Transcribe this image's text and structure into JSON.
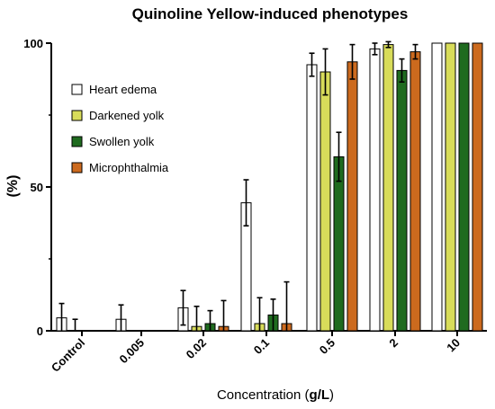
{
  "chart_data": {
    "type": "bar",
    "title": "Quinoline Yellow-induced phenotypes",
    "xlabel_prefix": "Concentration (",
    "xlabel_unit": "g/L",
    "xlabel_suffix": ")",
    "ylabel": "(%)",
    "ylim": [
      0,
      100
    ],
    "yticks": [
      "0",
      "50",
      "100"
    ],
    "categories": [
      "Control",
      "0.005",
      "0.02",
      "0.1",
      "0.5",
      "2",
      "10"
    ],
    "series": [
      {
        "name": "Heart edema",
        "color": "#ffffff",
        "values": [
          4.5,
          4,
          8,
          44.5,
          92.5,
          98,
          100
        ],
        "errors": [
          5,
          5,
          6,
          8,
          4,
          2,
          0
        ]
      },
      {
        "name": "Darkened yolk",
        "color": "#d8dc5a",
        "values": [
          0,
          0,
          1.5,
          2.5,
          90,
          99.5,
          100
        ],
        "errors": [
          0,
          0,
          7,
          9,
          8,
          1,
          0
        ]
      },
      {
        "name": "Swollen yolk",
        "color": "#1f6b1f",
        "values": [
          0,
          0,
          2.5,
          5.5,
          60.5,
          90.5,
          100
        ],
        "errors": [
          0,
          0,
          4.5,
          5.5,
          8.5,
          4,
          0
        ]
      },
      {
        "name": "Microphthalmia",
        "color": "#cc6a1e",
        "values": [
          0,
          0,
          1.5,
          2.5,
          93.5,
          97,
          100
        ],
        "errors": [
          0,
          0,
          9,
          14.5,
          6,
          2.5,
          0
        ]
      }
    ],
    "control_extra_error": {
      "value": 0,
      "error": 4
    },
    "legend_position": "top-left",
    "grid": false
  }
}
